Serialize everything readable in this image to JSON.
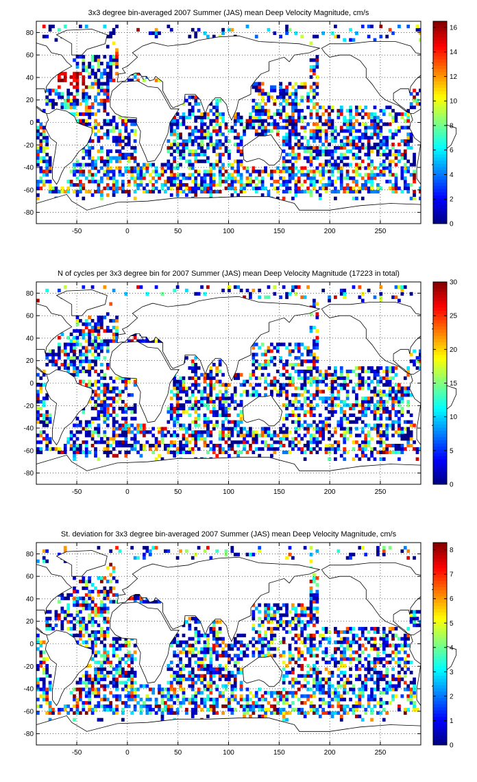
{
  "chart_data": [
    {
      "type": "heatmap",
      "title": "3x3 degree bin-averaged 2007 Summer (JAS) mean Deep Velocity Magnitude, cm/s",
      "xlabel": "",
      "ylabel": "",
      "xlim": [
        -90,
        290
      ],
      "ylim": [
        -90,
        90
      ],
      "x_ticks": [
        -50,
        0,
        50,
        100,
        150,
        200,
        250
      ],
      "y_ticks": [
        80,
        60,
        40,
        20,
        0,
        -20,
        -40,
        -60,
        -80
      ],
      "grid": true,
      "colorbar": {
        "min": 0,
        "max": 16.5,
        "ticks": [
          0,
          2,
          4,
          6,
          8,
          10,
          12,
          14,
          16
        ]
      },
      "colormap": "jet",
      "bin_size_deg": 3
    },
    {
      "type": "heatmap",
      "title": "N of cycles per 3x3 degree bin for 2007 Summer (JAS) mean Deep Velocity Magnitude (17223 in total)",
      "xlabel": "",
      "ylabel": "",
      "xlim": [
        -90,
        290
      ],
      "ylim": [
        -90,
        90
      ],
      "x_ticks": [
        -50,
        0,
        50,
        100,
        150,
        200,
        250
      ],
      "y_ticks": [
        80,
        60,
        40,
        20,
        0,
        -20,
        -40,
        -60,
        -80
      ],
      "grid": true,
      "colorbar": {
        "min": 0,
        "max": 30,
        "ticks": [
          0,
          5,
          10,
          15,
          20,
          25,
          30
        ]
      },
      "colormap": "jet",
      "bin_size_deg": 3
    },
    {
      "type": "heatmap",
      "title": "St. deviation for 3x3 degree bin-averaged 2007 Summer (JAS) mean Deep Velocity Magnitude, cm/s",
      "xlabel": "",
      "ylabel": "",
      "xlim": [
        -90,
        290
      ],
      "ylim": [
        -90,
        90
      ],
      "x_ticks": [
        -50,
        0,
        50,
        100,
        150,
        200,
        250
      ],
      "y_ticks": [
        80,
        60,
        40,
        20,
        0,
        -20,
        -40,
        -60,
        -80
      ],
      "grid": true,
      "colorbar": {
        "min": 0,
        "max": 8.3,
        "ticks": [
          0,
          1,
          2,
          3,
          4,
          5,
          6,
          7,
          8
        ]
      },
      "colormap": "jet",
      "bin_size_deg": 3
    }
  ]
}
